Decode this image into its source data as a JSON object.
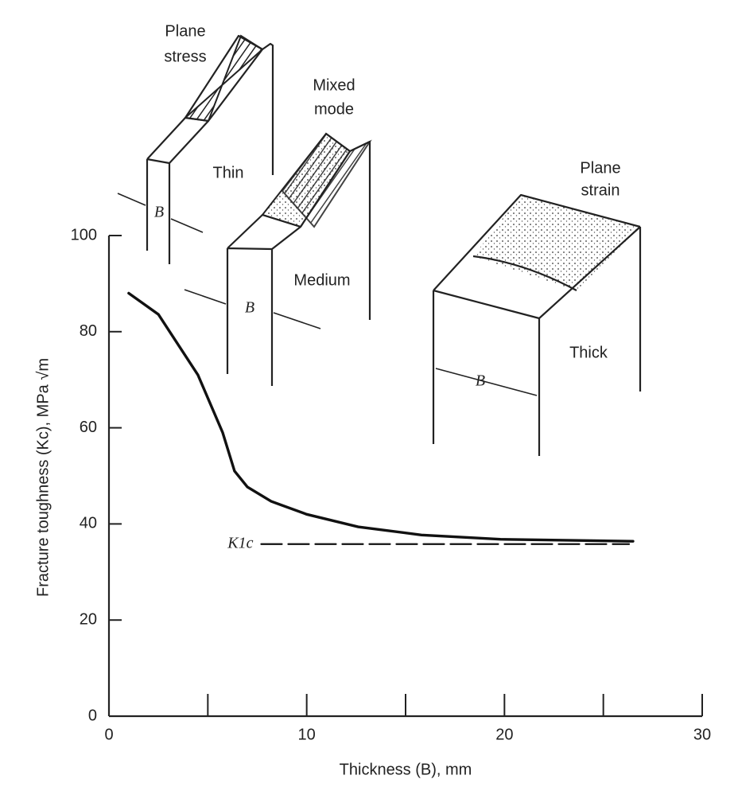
{
  "chart_data": {
    "type": "line",
    "xlabel": "Thickness (B), mm",
    "ylabel": "Fracture toughness (Kc), MPa √m",
    "xlim": [
      0,
      30
    ],
    "xticks": [
      0,
      10,
      20,
      30
    ],
    "xminorticks": [
      5,
      15,
      25
    ],
    "ylim": [
      0,
      100
    ],
    "yticks": [
      0,
      20,
      40,
      60,
      80,
      100
    ],
    "series": [
      {
        "color": "#111111",
        "dashed": false,
        "x": [
          1,
          2.5,
          4.5,
          5.75,
          6.35,
          7,
          8.2,
          10,
          12.6,
          15.8,
          19.8,
          26.5
        ],
        "values": [
          88,
          83.6,
          71,
          59,
          51,
          47.7,
          44.7,
          42,
          39.4,
          37.7,
          36.8,
          36.4
        ]
      },
      {
        "name": "K1c",
        "color": "#111111",
        "dashed": true,
        "x": [
          7.7,
          26.3
        ],
        "values": [
          35.8,
          35.8
        ]
      }
    ],
    "annotations": [
      "Plane",
      "stress",
      "Mixed",
      "mode",
      "Plane",
      "strain",
      "Thin",
      "Medium",
      "Thick",
      "B",
      "B",
      "B"
    ]
  }
}
